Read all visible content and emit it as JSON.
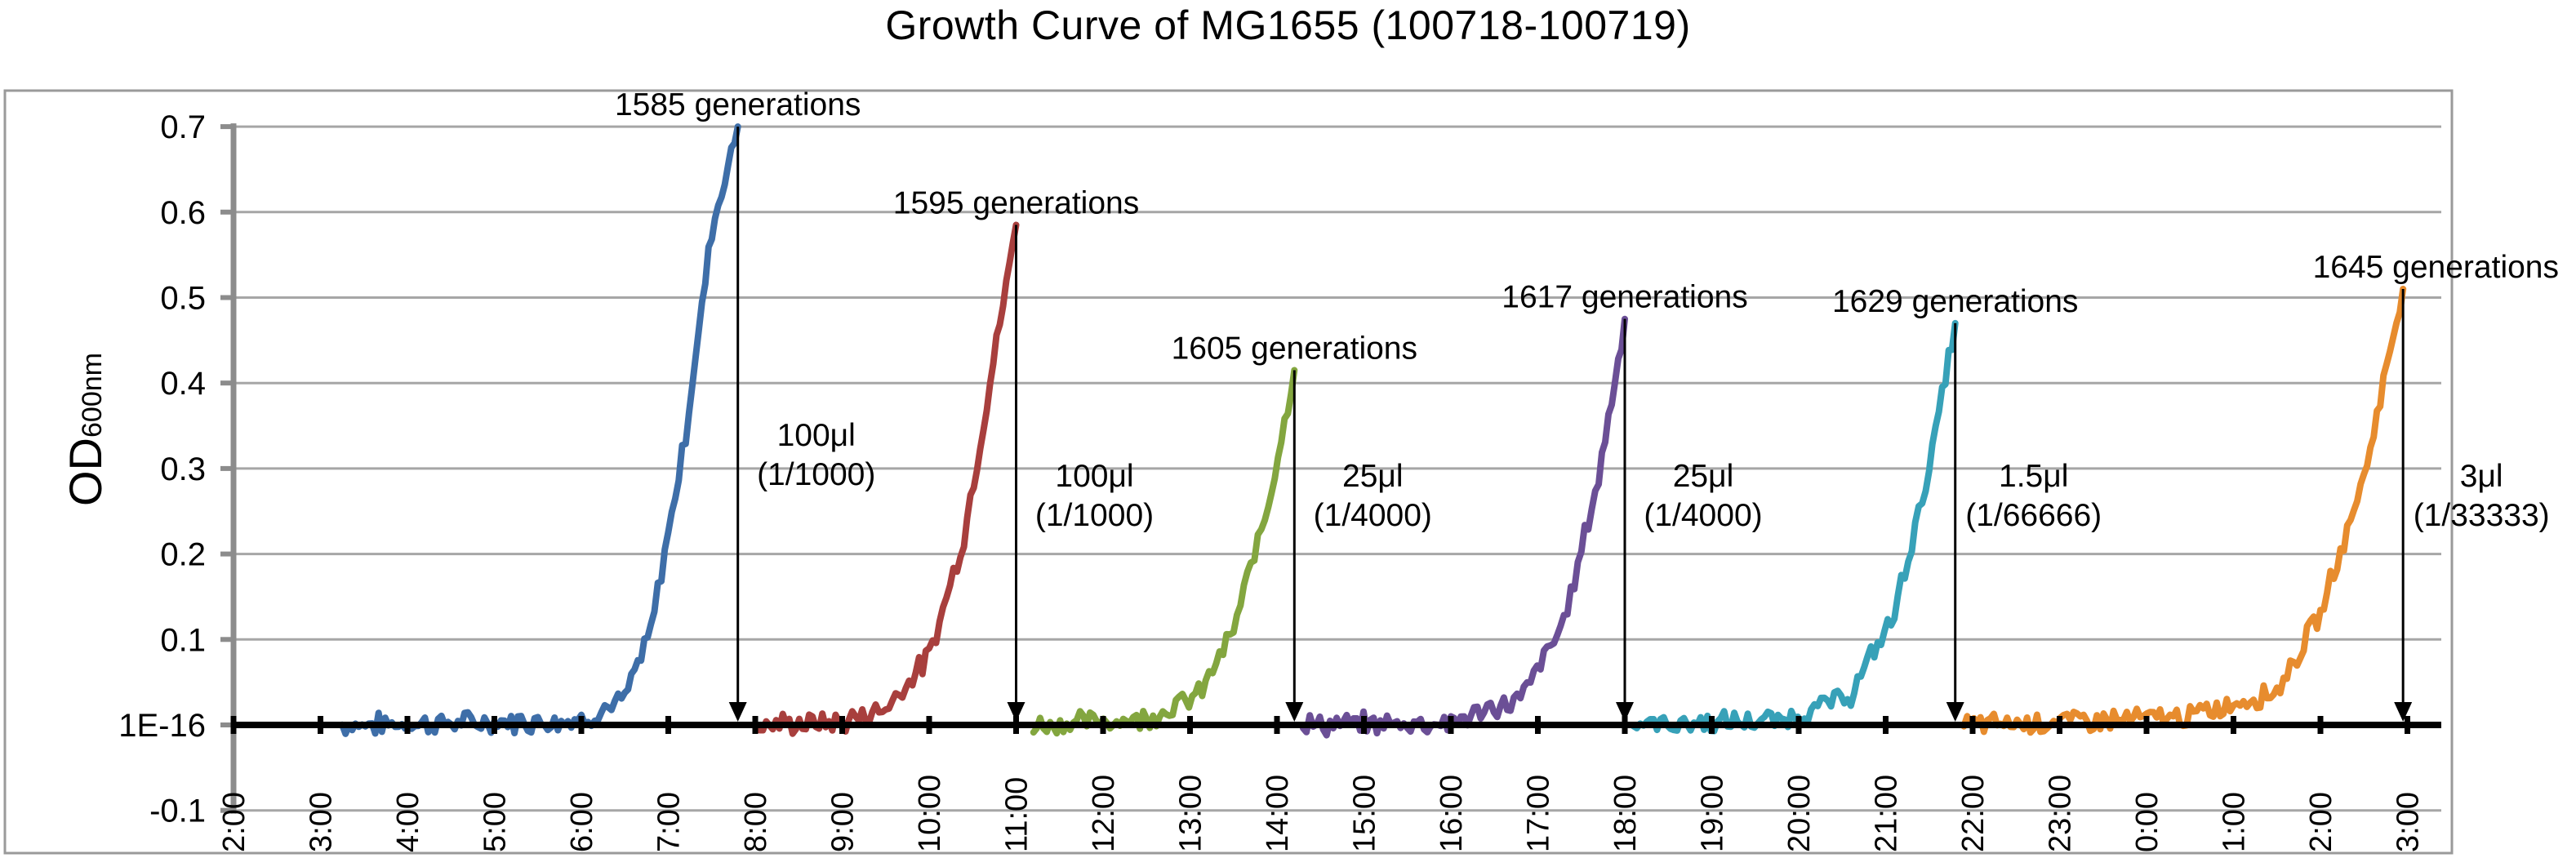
{
  "chart_data": {
    "type": "line",
    "title": "Growth Curve of MG1655 (100718-100719)",
    "ylabel": "OD600nm",
    "ylabel_main": "OD",
    "ylabel_sub": "600nm",
    "ylim": [
      -0.1,
      0.7
    ],
    "y_ticks": [
      -0.1,
      0,
      0.1,
      0.2,
      0.3,
      0.4,
      0.5,
      0.6,
      0.7
    ],
    "y_tick_labels": [
      "-0.1",
      "1E-16",
      "0.1",
      "0.2",
      "0.3",
      "0.4",
      "0.5",
      "0.6",
      "0.7"
    ],
    "x_tick_labels": [
      "2:00",
      "3:00",
      "4:00",
      "5:00",
      "6:00",
      "7:00",
      "8:00",
      "9:00",
      "10:00",
      "11:00",
      "12:00",
      "13:00",
      "14:00",
      "15:00",
      "16:00",
      "17:00",
      "18:00",
      "19:00",
      "20:00",
      "21:00",
      "22:00",
      "23:00",
      "0:00",
      "1:00",
      "2:00",
      "3:00"
    ],
    "x_unit": "hours elapsed from first tick",
    "grid": true,
    "series": [
      {
        "color": "#3e6ea8",
        "x": [
          1.25,
          3.0,
          4.0,
          4.5,
          4.8,
          5.2,
          5.5,
          5.8
        ],
        "y": [
          0.0,
          0.003,
          0.006,
          0.03,
          0.11,
          0.34,
          0.58,
          0.7
        ]
      },
      {
        "color": "#a83f3d",
        "x": [
          6.05,
          7.0,
          7.5,
          8.0,
          8.4,
          8.7,
          9.0
        ],
        "y": [
          0.0,
          0.003,
          0.02,
          0.08,
          0.22,
          0.4,
          0.585
        ]
      },
      {
        "color": "#83a63f",
        "x": [
          9.2,
          10.5,
          11.1,
          11.5,
          11.9,
          12.2
        ],
        "y": [
          0.0,
          0.008,
          0.035,
          0.11,
          0.26,
          0.415
        ]
      },
      {
        "color": "#6b4f96",
        "x": [
          12.3,
          14.0,
          14.8,
          15.3,
          15.7,
          16.0
        ],
        "y": [
          0.0,
          0.003,
          0.03,
          0.12,
          0.29,
          0.475
        ]
      },
      {
        "color": "#37a1b8",
        "x": [
          16.1,
          17.8,
          18.6,
          19.1,
          19.5,
          19.8
        ],
        "y": [
          0.0,
          0.005,
          0.035,
          0.13,
          0.3,
          0.47
        ]
      },
      {
        "color": "#e78c2e",
        "x": [
          19.9,
          22.5,
          23.5,
          24.0,
          24.5,
          24.95
        ],
        "y": [
          0.0,
          0.01,
          0.04,
          0.13,
          0.29,
          0.51
        ]
      }
    ],
    "annotations": [
      {
        "label": "1585 generations",
        "x": 5.8,
        "y": 0.7,
        "dilution": [
          "100μl",
          "(1/1000)"
        ]
      },
      {
        "label": "1595 generations",
        "x": 9.0,
        "y": 0.585,
        "dilution": [
          "100μl",
          "(1/1000)"
        ]
      },
      {
        "label": "1605 generations",
        "x": 12.2,
        "y": 0.415,
        "dilution": [
          "25μl",
          "(1/4000)"
        ]
      },
      {
        "label": "1617 generations",
        "x": 16.0,
        "y": 0.475,
        "dilution": [
          "25μl",
          "(1/4000)"
        ]
      },
      {
        "label": "1629 generations",
        "x": 19.8,
        "y": 0.47,
        "dilution": [
          "1.5μl",
          "(1/66666)"
        ]
      },
      {
        "label": "1645 generations",
        "x": 24.95,
        "y": 0.51,
        "dilution": [
          "3μl",
          "(1/33333)"
        ]
      }
    ]
  }
}
